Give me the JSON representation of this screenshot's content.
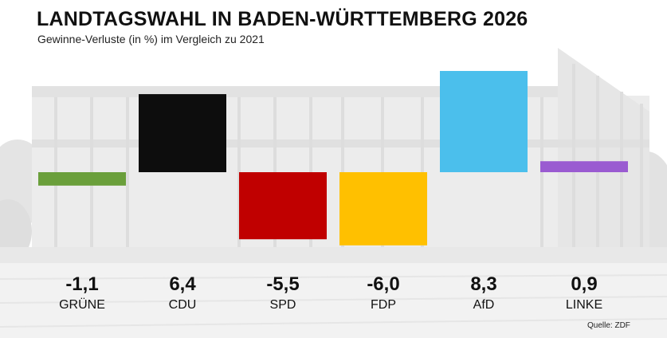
{
  "title": "LANDTAGSWAHL IN BADEN-WÜRTTEMBERG 2026",
  "subtitle": "Gewinne-Verluste (in %) im Vergleich zu 2021",
  "source": "Quelle: ZDF",
  "chart_data": {
    "type": "bar",
    "categories": [
      "GRÜNE",
      "CDU",
      "SPD",
      "FDP",
      "AfD",
      "LINKE"
    ],
    "values": [
      -1.1,
      6.4,
      -5.5,
      -6.0,
      8.3,
      0.9
    ],
    "value_labels": [
      "-1,1",
      "6,4",
      "-5,5",
      "-6,0",
      "8,3",
      "0,9"
    ],
    "colors": [
      "#6a9f3b",
      "#0d0d0d",
      "#c00000",
      "#ffc000",
      "#4bbfec",
      "#9a5bd1"
    ],
    "xlabel": "",
    "ylabel": "",
    "grid": false,
    "legend": "none"
  }
}
